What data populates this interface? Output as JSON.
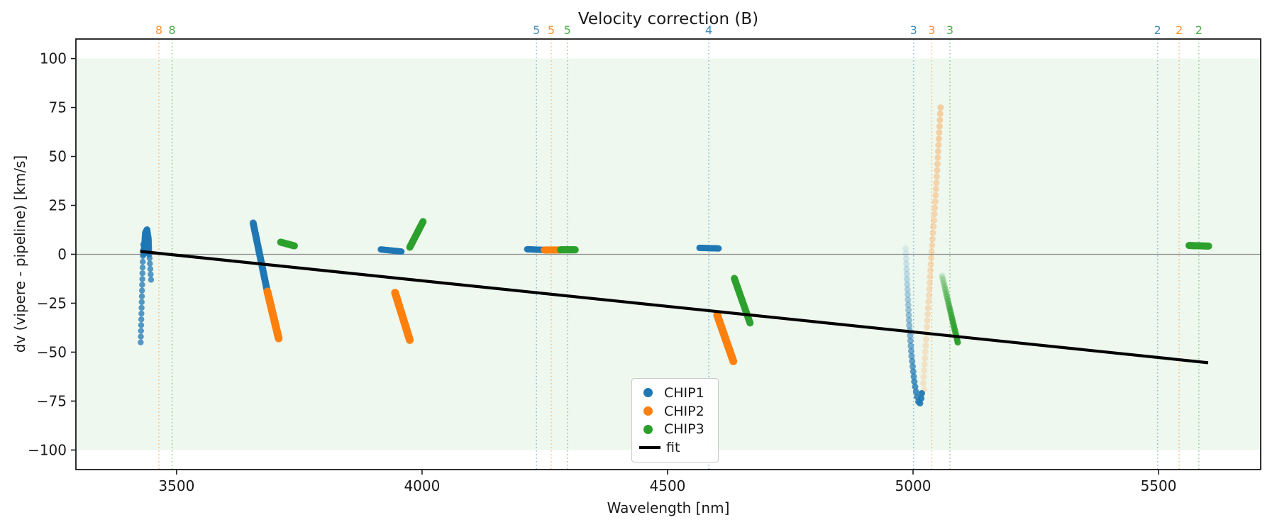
{
  "chart_data": {
    "type": "scatter",
    "title": "Velocity correction (B)",
    "xlabel": "Wavelength [nm]",
    "ylabel": "dv (vipere - pipeline) [km/s]",
    "xlim": [
      3295,
      5708
    ],
    "ylim": [
      -110,
      110
    ],
    "x_ticks": [
      3500,
      4000,
      4500,
      5000,
      5500
    ],
    "y_ticks": [
      100,
      75,
      50,
      25,
      0,
      -25,
      -50,
      -75,
      -100
    ],
    "grid": false,
    "legend_position": "lower center",
    "shaded_band": {
      "ymin": -100,
      "ymax": 100,
      "color": "rgba(44,160,44,0.08)"
    },
    "zero_line": {
      "y": 0,
      "color": "#8a8a8a"
    },
    "colors": {
      "CHIP1": "#1f77b4",
      "CHIP2": "#ff7f0e",
      "CHIP3": "#2ca02c",
      "fit": "#000000"
    },
    "legend": [
      {
        "label": "CHIP1",
        "marker": "dot",
        "color": "#1f77b4"
      },
      {
        "label": "CHIP2",
        "marker": "dot",
        "color": "#ff7f0e"
      },
      {
        "label": "CHIP3",
        "marker": "dot",
        "color": "#2ca02c"
      },
      {
        "label": "fit",
        "marker": "line",
        "color": "#000000"
      }
    ],
    "vlines": [
      {
        "label": "8",
        "chip": "CHIP2",
        "x": 3464
      },
      {
        "label": "8",
        "chip": "CHIP3",
        "x": 3491
      },
      {
        "label": "5",
        "chip": "CHIP1",
        "x": 4233
      },
      {
        "label": "5",
        "chip": "CHIP2",
        "x": 4263
      },
      {
        "label": "5",
        "chip": "CHIP3",
        "x": 4296
      },
      {
        "label": "4",
        "chip": "CHIP1",
        "x": 4584
      },
      {
        "label": "3",
        "chip": "CHIP1",
        "x": 5001
      },
      {
        "label": "3",
        "chip": "CHIP2",
        "x": 5038
      },
      {
        "label": "3",
        "chip": "CHIP3",
        "x": 5075
      },
      {
        "label": "2",
        "chip": "CHIP1",
        "x": 5498
      },
      {
        "label": "2",
        "chip": "CHIP2",
        "x": 5542
      },
      {
        "label": "2",
        "chip": "CHIP3",
        "x": 5582
      }
    ],
    "clusters": [
      {
        "chip": "CHIP1",
        "pts": [
          [
            3432,
            5
          ],
          [
            3427,
            -45
          ]
        ],
        "n": 18,
        "r": 4.2,
        "o": [
          0.75,
          0.75
        ]
      },
      {
        "chip": "CHIP1",
        "pts": [
          [
            3433,
            0
          ],
          [
            3436,
            11
          ],
          [
            3440,
            13
          ],
          [
            3443,
            8
          ],
          [
            3444,
            0
          ]
        ],
        "n": 32,
        "r": 4.5,
        "o": [
          0.85,
          0.85
        ]
      },
      {
        "chip": "CHIP1",
        "pts": [
          [
            3445,
            -2
          ],
          [
            3448,
            -13
          ]
        ],
        "n": 5,
        "r": 4.2,
        "o": [
          0.75,
          0.75
        ]
      },
      {
        "chip": "CHIP1",
        "pts": [
          [
            3656,
            16
          ],
          [
            3684,
            -18
          ]
        ],
        "n": 45,
        "r": 5,
        "o": [
          0.92,
          0.92
        ]
      },
      {
        "chip": "CHIP2",
        "pts": [
          [
            3685,
            -19
          ],
          [
            3708,
            -43
          ]
        ],
        "n": 42,
        "r": 5.5,
        "o": [
          0.95,
          0.95
        ]
      },
      {
        "chip": "CHIP3",
        "pts": [
          [
            3712,
            6.2
          ],
          [
            3740,
            4.3
          ]
        ],
        "n": 26,
        "r": 5,
        "o": [
          0.95,
          0.95
        ]
      },
      {
        "chip": "CHIP1",
        "pts": [
          [
            3916,
            2.5
          ],
          [
            3958,
            1.4
          ]
        ],
        "n": 30,
        "r": 4.5,
        "o": [
          0.9,
          0.9
        ]
      },
      {
        "chip": "CHIP2",
        "pts": [
          [
            3945,
            -19.6
          ],
          [
            3975,
            -43.8
          ]
        ],
        "n": 42,
        "r": 5.5,
        "o": [
          0.95,
          0.95
        ]
      },
      {
        "chip": "CHIP3",
        "pts": [
          [
            3975,
            3.6
          ],
          [
            4002,
            16.7
          ]
        ],
        "n": 40,
        "r": 5,
        "o": [
          0.95,
          0.95
        ]
      },
      {
        "chip": "CHIP1",
        "pts": [
          [
            4214,
            2.6
          ],
          [
            4250,
            2.2
          ]
        ],
        "n": 28,
        "r": 4.5,
        "o": [
          0.9,
          0.9
        ]
      },
      {
        "chip": "CHIP2",
        "pts": [
          [
            4249,
            2.2
          ],
          [
            4282,
            2.2
          ]
        ],
        "n": 28,
        "r": 5,
        "o": [
          0.95,
          0.95
        ]
      },
      {
        "chip": "CHIP3",
        "pts": [
          [
            4282,
            2.3
          ],
          [
            4312,
            2.3
          ]
        ],
        "n": 28,
        "r": 5,
        "o": [
          0.95,
          0.95
        ]
      },
      {
        "chip": "CHIP1",
        "pts": [
          [
            4565,
            3.3
          ],
          [
            4604,
            3.0
          ]
        ],
        "n": 30,
        "r": 4.5,
        "o": [
          0.9,
          0.9
        ]
      },
      {
        "chip": "CHIP2",
        "pts": [
          [
            4601,
            -31
          ],
          [
            4634,
            -54.7
          ]
        ],
        "n": 42,
        "r": 5.5,
        "o": [
          0.95,
          0.95
        ]
      },
      {
        "chip": "CHIP3",
        "pts": [
          [
            4636,
            -12.3
          ],
          [
            4668,
            -35.1
          ]
        ],
        "n": 40,
        "r": 5,
        "o": [
          0.95,
          0.95
        ]
      },
      {
        "chip": "CHIP1",
        "pts": [
          [
            4985,
            3
          ],
          [
            4988,
            -15
          ],
          [
            4992,
            -35
          ],
          [
            4997,
            -52
          ],
          [
            5003,
            -66
          ],
          [
            5009,
            -74
          ],
          [
            5013,
            -77
          ],
          [
            5016,
            -75
          ],
          [
            5018,
            -71
          ]
        ],
        "n": 34,
        "r": 4.5,
        "o": [
          0.1,
          0.95
        ]
      },
      {
        "chip": "CHIP2",
        "pts": [
          [
            5056,
            75
          ],
          [
            5050,
            47
          ],
          [
            5044,
            22
          ],
          [
            5038,
            2
          ],
          [
            5032,
            -22
          ],
          [
            5027,
            -42
          ],
          [
            5023,
            -58
          ],
          [
            5021,
            -66
          ],
          [
            5023,
            -69
          ]
        ],
        "n": 46,
        "r": 4.5,
        "o": [
          0.35,
          0.16
        ]
      },
      {
        "chip": "CHIP3",
        "pts": [
          [
            5059,
            -11
          ],
          [
            5091,
            -45
          ]
        ],
        "n": 30,
        "r": 4.5,
        "o": [
          0.18,
          0.95
        ]
      },
      {
        "chip": "CHIP3",
        "pts": [
          [
            5562,
            4.5
          ],
          [
            5602,
            4.2
          ]
        ],
        "n": 28,
        "r": 5,
        "o": [
          0.95,
          0.95
        ]
      }
    ],
    "fit_line": {
      "x1": 3426,
      "y1": 1.5,
      "x2": 5601,
      "y2": -55.4
    }
  }
}
